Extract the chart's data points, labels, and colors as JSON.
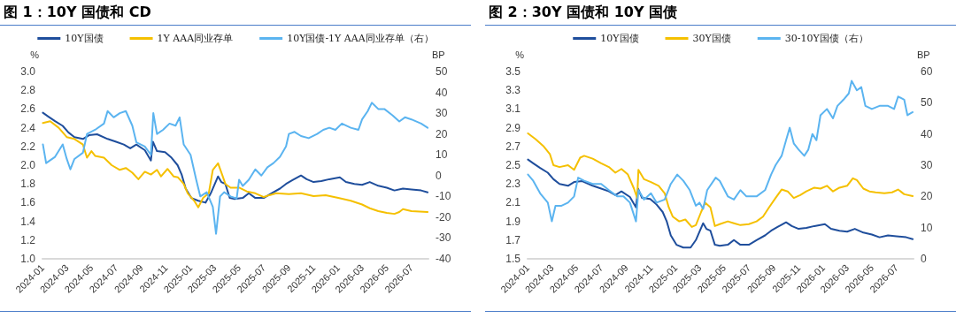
{
  "chart_data": [
    {
      "type": "line",
      "title": "图 1：10Y 国债和 CD",
      "ylabel": "%",
      "y2label": "BP",
      "legend": "top",
      "grid": false,
      "marker": "none",
      "line_style": "solid",
      "xlim": [
        "2024-01",
        "2026-08-12"
      ],
      "xticks": [
        "2024-01",
        "2024-03",
        "2024-05",
        "2024-07",
        "2024-09",
        "2024-11",
        "2025-01",
        "2025-03",
        "2025-05",
        "2025-07",
        "2025-09",
        "2025-11",
        "2026-01",
        "2026-03",
        "2026-05",
        "2026-07"
      ],
      "ylim": [
        1.0,
        3.0
      ],
      "yticks": [
        {
          "value": 1.0,
          "label": "1.0"
        },
        {
          "value": 1.2,
          "label": "1.2"
        },
        {
          "value": 1.4,
          "label": "1.4"
        },
        {
          "value": 1.6,
          "label": "1.6"
        },
        {
          "value": 1.8,
          "label": "1.8"
        },
        {
          "value": 2.0,
          "label": "2.0"
        },
        {
          "value": 2.2,
          "label": "2.2"
        },
        {
          "value": 2.4,
          "label": "2.4"
        },
        {
          "value": 2.6,
          "label": "2.6"
        },
        {
          "value": 2.8,
          "label": "2.8"
        },
        {
          "value": 3.0,
          "label": "3.0"
        }
      ],
      "y2lim": [
        -40,
        50
      ],
      "y2ticks": [
        -40,
        -30,
        -20,
        -10,
        0,
        10,
        20,
        30,
        40,
        50
      ],
      "series": [
        {
          "name": "10Y国债",
          "color": "#1f4e9c",
          "x": [
            "2024-01-02",
            "2024-01-15",
            "2024-02-01",
            "2024-02-20",
            "2024-03-05",
            "2024-03-20",
            "2024-04-10",
            "2024-04-25",
            "2024-05-15",
            "2024-06-10",
            "2024-07-01",
            "2024-07-20",
            "2024-08-05",
            "2024-08-20",
            "2024-09-10",
            "2024-09-25",
            "2024-09-30",
            "2024-10-10",
            "2024-10-30",
            "2024-11-15",
            "2024-11-30",
            "2024-12-10",
            "2024-12-20",
            "2025-01-03",
            "2025-01-20",
            "2025-02-07",
            "2025-02-20",
            "2025-03-10",
            "2025-03-18",
            "2025-03-28",
            "2025-04-08",
            "2025-04-20",
            "2025-05-10",
            "2025-05-25",
            "2025-06-10",
            "2025-07-01",
            "2025-07-20",
            "2025-08-10",
            "2025-08-25",
            "2025-09-10",
            "2025-10-01",
            "2025-10-15",
            "2025-11-01",
            "2025-11-20",
            "2025-12-10",
            "2026-01-05",
            "2026-01-20",
            "2026-02-10",
            "2026-03-01",
            "2026-03-20",
            "2026-04-10",
            "2026-05-01",
            "2026-05-20",
            "2026-06-10",
            "2026-07-01",
            "2026-07-25",
            "2026-08-10"
          ],
          "values": [
            2.56,
            2.52,
            2.47,
            2.42,
            2.35,
            2.3,
            2.28,
            2.32,
            2.33,
            2.28,
            2.25,
            2.22,
            2.18,
            2.22,
            2.16,
            2.05,
            2.25,
            2.15,
            2.14,
            2.08,
            2.0,
            1.9,
            1.75,
            1.65,
            1.62,
            1.6,
            1.7,
            1.88,
            1.82,
            1.8,
            1.65,
            1.64,
            1.65,
            1.7,
            1.65,
            1.65,
            1.7,
            1.75,
            1.8,
            1.84,
            1.89,
            1.85,
            1.82,
            1.83,
            1.85,
            1.87,
            1.82,
            1.8,
            1.79,
            1.82,
            1.78,
            1.76,
            1.73,
            1.75,
            1.74,
            1.73,
            1.71
          ],
          "axis": "y"
        },
        {
          "name": "1Y AAA同业存单",
          "color": "#f5c000",
          "x": [
            "2024-01-02",
            "2024-01-20",
            "2024-02-10",
            "2024-03-01",
            "2024-03-20",
            "2024-04-10",
            "2024-04-20",
            "2024-05-01",
            "2024-05-10",
            "2024-06-01",
            "2024-06-20",
            "2024-07-10",
            "2024-07-25",
            "2024-08-10",
            "2024-08-25",
            "2024-09-10",
            "2024-09-25",
            "2024-10-10",
            "2024-10-20",
            "2024-11-05",
            "2024-11-20",
            "2024-12-01",
            "2024-12-15",
            "2024-12-25",
            "2025-01-10",
            "2025-01-20",
            "2025-02-01",
            "2025-02-15",
            "2025-02-25",
            "2025-03-10",
            "2025-03-20",
            "2025-03-28",
            "2025-04-10",
            "2025-05-01",
            "2025-05-20",
            "2025-06-10",
            "2025-07-01",
            "2025-07-15",
            "2025-08-01",
            "2025-09-01",
            "2025-10-01",
            "2025-11-01",
            "2025-12-01",
            "2026-01-01",
            "2026-02-01",
            "2026-03-01",
            "2026-03-20",
            "2026-04-10",
            "2026-05-01",
            "2026-05-20",
            "2026-06-01",
            "2026-06-10",
            "2026-07-01",
            "2026-08-10"
          ],
          "values": [
            2.45,
            2.47,
            2.4,
            2.3,
            2.28,
            2.22,
            2.08,
            2.15,
            2.1,
            2.08,
            2.0,
            1.95,
            1.97,
            1.92,
            1.85,
            1.93,
            1.9,
            1.95,
            1.88,
            1.96,
            1.88,
            1.87,
            1.8,
            1.7,
            1.62,
            1.55,
            1.65,
            1.7,
            1.95,
            2.02,
            1.9,
            1.8,
            1.76,
            1.76,
            1.72,
            1.7,
            1.66,
            1.68,
            1.7,
            1.69,
            1.7,
            1.67,
            1.68,
            1.65,
            1.62,
            1.58,
            1.54,
            1.51,
            1.49,
            1.48,
            1.5,
            1.53,
            1.51,
            1.5
          ],
          "axis": "y"
        },
        {
          "name": "10Y国债-1Y AAA同业存单（右）",
          "color": "#5bb4f0",
          "x": [
            "2024-01-02",
            "2024-01-10",
            "2024-02-01",
            "2024-02-20",
            "2024-03-01",
            "2024-03-10",
            "2024-03-20",
            "2024-04-10",
            "2024-04-20",
            "2024-05-10",
            "2024-06-01",
            "2024-06-10",
            "2024-06-25",
            "2024-07-10",
            "2024-07-25",
            "2024-08-10",
            "2024-08-20",
            "2024-09-10",
            "2024-09-25",
            "2024-10-01",
            "2024-10-10",
            "2024-10-25",
            "2024-11-10",
            "2024-11-25",
            "2024-12-05",
            "2024-12-15",
            "2025-01-01",
            "2025-01-15",
            "2025-01-25",
            "2025-02-10",
            "2025-02-25",
            "2025-03-05",
            "2025-03-15",
            "2025-03-25",
            "2025-04-10",
            "2025-04-25",
            "2025-05-01",
            "2025-05-10",
            "2025-05-25",
            "2025-06-10",
            "2025-06-25",
            "2025-07-10",
            "2025-07-25",
            "2025-08-10",
            "2025-08-25",
            "2025-09-01",
            "2025-09-15",
            "2025-10-01",
            "2025-10-20",
            "2025-11-10",
            "2025-11-25",
            "2025-12-10",
            "2025-12-25",
            "2026-01-10",
            "2026-02-01",
            "2026-02-20",
            "2026-03-01",
            "2026-03-15",
            "2026-03-25",
            "2026-04-10",
            "2026-04-25",
            "2026-05-15",
            "2026-06-01",
            "2026-06-15",
            "2026-07-01",
            "2026-07-25",
            "2026-08-10"
          ],
          "values": [
            15,
            6,
            9,
            15,
            8,
            3,
            8,
            11,
            20,
            22,
            25,
            31,
            28,
            30,
            31,
            24,
            16,
            14,
            10,
            30,
            20,
            22,
            25,
            24,
            28,
            15,
            10,
            -2,
            -10,
            -8,
            -15,
            -28,
            -10,
            -8,
            -10,
            -11,
            -2,
            -5,
            -2,
            3,
            0,
            4,
            6,
            9,
            14,
            20,
            21,
            19,
            18,
            20,
            22,
            23,
            22,
            25,
            23,
            22,
            27,
            31,
            35,
            32,
            32,
            29,
            26,
            28,
            27,
            25,
            23
          ],
          "axis": "y2"
        }
      ]
    },
    {
      "type": "line",
      "title": "图 2：30Y 国债和 10Y 国债",
      "ylabel": "%",
      "y2label": "BP",
      "legend": "top",
      "grid": false,
      "marker": "none",
      "line_style": "solid",
      "xlim": [
        "2024-01",
        "2026-08-12"
      ],
      "xticks": [
        "2024-01",
        "2024-03",
        "2024-05",
        "2024-07",
        "2024-09",
        "2024-11",
        "2025-01",
        "2025-03",
        "2025-05",
        "2025-07",
        "2025-09",
        "2025-11",
        "2026-01",
        "2026-03",
        "2026-05",
        "2026-07"
      ],
      "ylim": [
        1.5,
        3.5
      ],
      "yticks": [
        1.5,
        1.7,
        1.9,
        2.1,
        2.3,
        2.5,
        2.7,
        2.9,
        3.1,
        3.3,
        3.5
      ],
      "y2lim": [
        0,
        60
      ],
      "y2ticks": [
        0,
        10,
        20,
        30,
        40,
        50,
        60
      ],
      "series": [
        {
          "name": "10Y国债",
          "color": "#1f4e9c",
          "x": [
            "2024-01-02",
            "2024-01-15",
            "2024-02-01",
            "2024-02-20",
            "2024-03-05",
            "2024-03-20",
            "2024-04-10",
            "2024-04-25",
            "2024-05-15",
            "2024-06-10",
            "2024-07-01",
            "2024-07-20",
            "2024-08-05",
            "2024-08-20",
            "2024-09-10",
            "2024-09-25",
            "2024-09-30",
            "2024-10-10",
            "2024-10-30",
            "2024-11-15",
            "2024-11-30",
            "2024-12-10",
            "2024-12-20",
            "2025-01-03",
            "2025-01-20",
            "2025-02-07",
            "2025-02-20",
            "2025-03-10",
            "2025-03-18",
            "2025-03-28",
            "2025-04-08",
            "2025-04-20",
            "2025-05-10",
            "2025-05-25",
            "2025-06-10",
            "2025-07-01",
            "2025-07-20",
            "2025-08-10",
            "2025-08-25",
            "2025-09-10",
            "2025-10-01",
            "2025-10-15",
            "2025-11-01",
            "2025-11-20",
            "2025-12-10",
            "2026-01-05",
            "2026-01-20",
            "2026-02-10",
            "2026-03-01",
            "2026-03-20",
            "2026-04-10",
            "2026-05-01",
            "2026-05-20",
            "2026-06-10",
            "2026-07-01",
            "2026-07-25",
            "2026-08-10"
          ],
          "values": [
            2.56,
            2.52,
            2.47,
            2.42,
            2.35,
            2.3,
            2.28,
            2.32,
            2.33,
            2.28,
            2.25,
            2.22,
            2.18,
            2.22,
            2.16,
            2.05,
            2.25,
            2.15,
            2.14,
            2.08,
            2.0,
            1.9,
            1.75,
            1.65,
            1.62,
            1.62,
            1.7,
            1.88,
            1.82,
            1.8,
            1.65,
            1.64,
            1.65,
            1.7,
            1.65,
            1.65,
            1.7,
            1.75,
            1.8,
            1.84,
            1.89,
            1.85,
            1.82,
            1.83,
            1.85,
            1.87,
            1.82,
            1.8,
            1.79,
            1.82,
            1.78,
            1.76,
            1.73,
            1.75,
            1.74,
            1.73,
            1.71
          ],
          "axis": "y"
        },
        {
          "name": "30Y国债",
          "color": "#f5c000",
          "x": [
            "2024-01-02",
            "2024-01-20",
            "2024-02-10",
            "2024-02-25",
            "2024-03-05",
            "2024-03-20",
            "2024-04-10",
            "2024-04-25",
            "2024-05-10",
            "2024-05-20",
            "2024-06-10",
            "2024-07-01",
            "2024-07-20",
            "2024-08-05",
            "2024-08-20",
            "2024-09-05",
            "2024-09-20",
            "2024-09-28",
            "2024-10-01",
            "2024-10-15",
            "2024-11-01",
            "2024-11-20",
            "2024-12-05",
            "2024-12-15",
            "2024-12-25",
            "2025-01-10",
            "2025-01-25",
            "2025-02-10",
            "2025-02-20",
            "2025-03-05",
            "2025-03-15",
            "2025-03-28",
            "2025-04-08",
            "2025-04-20",
            "2025-05-10",
            "2025-05-25",
            "2025-06-10",
            "2025-07-01",
            "2025-07-20",
            "2025-08-05",
            "2025-08-20",
            "2025-09-05",
            "2025-09-20",
            "2025-10-05",
            "2025-10-20",
            "2025-11-05",
            "2025-11-20",
            "2025-12-10",
            "2025-12-25",
            "2026-01-10",
            "2026-01-25",
            "2026-02-10",
            "2026-03-01",
            "2026-03-15",
            "2026-03-25",
            "2026-04-10",
            "2026-04-25",
            "2026-05-10",
            "2026-06-01",
            "2026-06-20",
            "2026-07-05",
            "2026-07-20",
            "2026-08-10"
          ],
          "values": [
            2.84,
            2.78,
            2.7,
            2.62,
            2.5,
            2.48,
            2.5,
            2.45,
            2.58,
            2.6,
            2.57,
            2.52,
            2.48,
            2.42,
            2.46,
            2.4,
            2.25,
            2.15,
            2.45,
            2.35,
            2.32,
            2.28,
            2.2,
            2.05,
            1.95,
            1.9,
            1.92,
            1.84,
            1.86,
            2.0,
            2.1,
            2.05,
            1.85,
            1.87,
            1.9,
            1.88,
            1.86,
            1.87,
            1.9,
            1.95,
            2.05,
            2.15,
            2.24,
            2.22,
            2.15,
            2.18,
            2.22,
            2.26,
            2.25,
            2.28,
            2.22,
            2.26,
            2.28,
            2.36,
            2.34,
            2.25,
            2.22,
            2.21,
            2.2,
            2.21,
            2.24,
            2.19,
            2.17
          ],
          "axis": "y"
        },
        {
          "name": "30-10Y国债（右）",
          "color": "#5bb4f0",
          "x": [
            "2024-01-02",
            "2024-01-15",
            "2024-02-01",
            "2024-02-20",
            "2024-03-01",
            "2024-03-10",
            "2024-03-25",
            "2024-04-10",
            "2024-04-25",
            "2024-05-05",
            "2024-05-20",
            "2024-06-10",
            "2024-07-01",
            "2024-07-20",
            "2024-08-10",
            "2024-08-25",
            "2024-09-10",
            "2024-09-25",
            "2024-10-01",
            "2024-10-15",
            "2024-11-01",
            "2024-11-15",
            "2024-12-05",
            "2024-12-20",
            "2025-01-05",
            "2025-01-20",
            "2025-02-05",
            "2025-02-20",
            "2025-03-01",
            "2025-03-10",
            "2025-03-20",
            "2025-04-10",
            "2025-04-20",
            "2025-05-10",
            "2025-05-25",
            "2025-06-10",
            "2025-06-25",
            "2025-07-20",
            "2025-08-10",
            "2025-08-25",
            "2025-09-05",
            "2025-09-20",
            "2025-10-01",
            "2025-10-10",
            "2025-10-20",
            "2025-11-01",
            "2025-11-15",
            "2025-11-25",
            "2025-12-05",
            "2025-12-15",
            "2025-12-25",
            "2026-01-10",
            "2026-01-25",
            "2026-02-05",
            "2026-02-20",
            "2026-03-05",
            "2026-03-12",
            "2026-03-25",
            "2026-04-05",
            "2026-04-15",
            "2026-05-01",
            "2026-05-20",
            "2026-06-10",
            "2026-06-25",
            "2026-07-05",
            "2026-07-20",
            "2026-07-28",
            "2026-08-10"
          ],
          "values": [
            27,
            25,
            21,
            18,
            12,
            17,
            17,
            18,
            20,
            26,
            25,
            24,
            24,
            22,
            20,
            20,
            18,
            12,
            22,
            19,
            21,
            18,
            19,
            24,
            27,
            25,
            22,
            17,
            18,
            16,
            22,
            26,
            25,
            20,
            19,
            22,
            20,
            20,
            22,
            27,
            30,
            33,
            38,
            42,
            37,
            35,
            33,
            35,
            40,
            38,
            46,
            48,
            45,
            49,
            51,
            53,
            57,
            54,
            55,
            49,
            48,
            49,
            49,
            48,
            52,
            51,
            46,
            47
          ],
          "axis": "y2"
        }
      ]
    }
  ]
}
